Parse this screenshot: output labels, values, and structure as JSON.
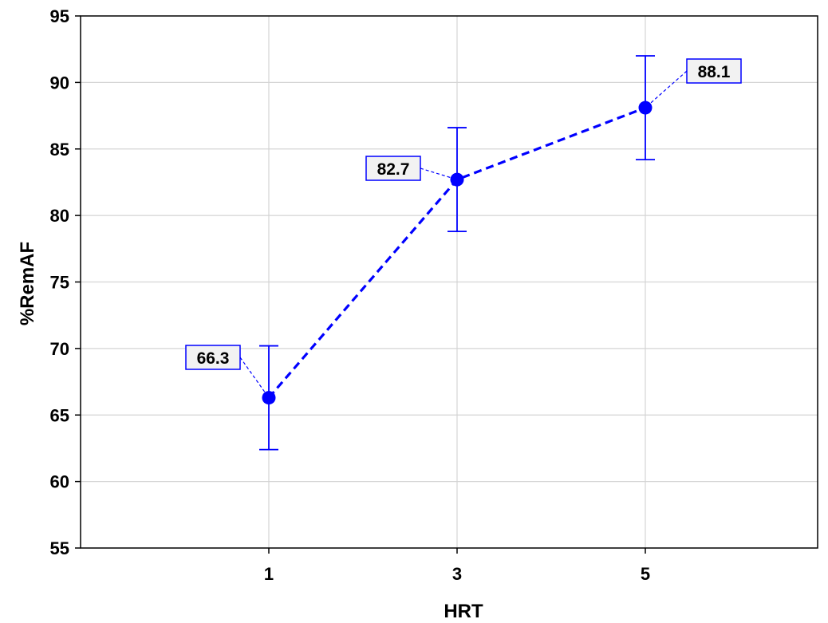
{
  "chart_data": {
    "type": "line",
    "title": "",
    "xlabel": "HRT",
    "ylabel": "%RemAF",
    "x_categories": [
      "1",
      "3",
      "5"
    ],
    "ylim": [
      55,
      95
    ],
    "y_ticks": [
      "55",
      "60",
      "65",
      "70",
      "75",
      "80",
      "85",
      "90",
      "95"
    ],
    "grid": true,
    "legend": "none",
    "series": [
      {
        "values": [
          66.3,
          82.7,
          88.1
        ],
        "error_low": [
          62.4,
          78.8,
          84.2
        ],
        "error_high": [
          70.2,
          86.6,
          92.0
        ],
        "labels": [
          "66.3",
          "82.7",
          "88.1"
        ],
        "line_style": "dashed",
        "color": "#0000ff"
      }
    ]
  }
}
